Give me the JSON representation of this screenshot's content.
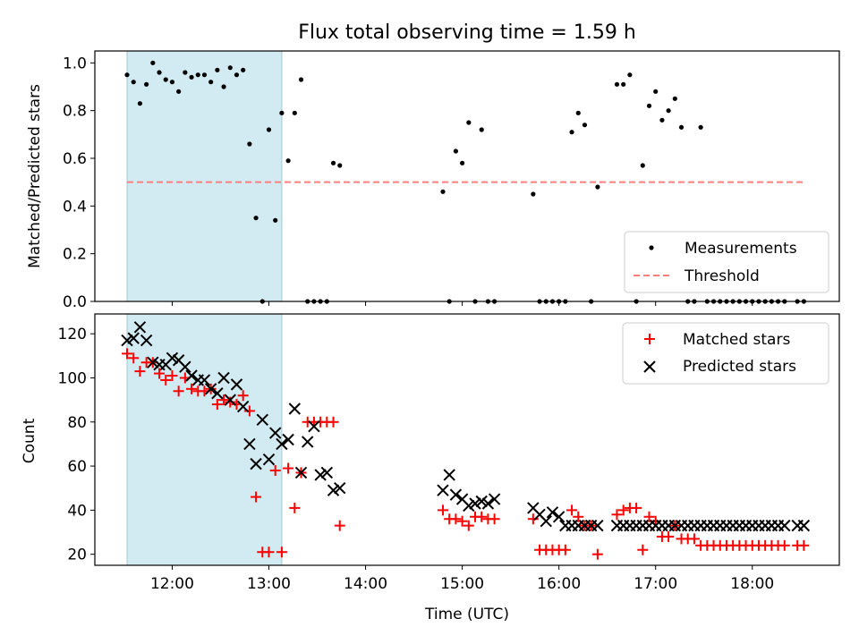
{
  "chart_data": [
    {
      "type": "scatter",
      "title": "Flux total observing time = 1.59 h",
      "xlabel": "",
      "ylabel": "Matched/Predicted stars",
      "xlim": [
        "11:12",
        "18:54"
      ],
      "ylim": [
        0,
        1.05
      ],
      "yticks": [
        "0.0",
        "0.2",
        "0.4",
        "0.6",
        "0.8",
        "1.0"
      ],
      "xticks": [
        "12:00",
        "13:00",
        "14:00",
        "15:00",
        "16:00",
        "17:00",
        "18:00"
      ],
      "shaded_region": {
        "from": "11:32",
        "to": "13:08",
        "color": "#add8e6"
      },
      "threshold": {
        "name": "Threshold",
        "value": 0.5,
        "from": "11:32",
        "to": "18:32",
        "color": "#ff7f7f"
      },
      "legend_position": "lower-right",
      "series": [
        {
          "name": "Measurements",
          "color": "#000000",
          "x": [
            "11:32",
            "11:36",
            "11:40",
            "11:44",
            "11:48",
            "11:52",
            "11:56",
            "12:00",
            "12:04",
            "12:08",
            "12:12",
            "12:16",
            "12:20",
            "12:24",
            "12:28",
            "12:32",
            "12:36",
            "12:40",
            "12:44",
            "12:48",
            "12:52",
            "12:56",
            "13:00",
            "13:04",
            "13:08",
            "13:12",
            "13:16",
            "13:20",
            "13:24",
            "13:28",
            "13:32",
            "13:36",
            "13:40",
            "13:44",
            "14:48",
            "14:52",
            "14:56",
            "15:00",
            "15:04",
            "15:08",
            "15:12",
            "15:16",
            "15:20",
            "15:44",
            "15:48",
            "15:52",
            "15:56",
            "16:00",
            "16:04",
            "16:08",
            "16:12",
            "16:16",
            "16:20",
            "16:24",
            "16:36",
            "16:40",
            "16:44",
            "16:48",
            "16:52",
            "16:56",
            "17:00",
            "17:04",
            "17:08",
            "17:12",
            "17:16",
            "17:20",
            "17:24",
            "17:28",
            "17:32",
            "17:36",
            "17:40",
            "17:44",
            "17:48",
            "17:52",
            "17:56",
            "18:00",
            "18:04",
            "18:08",
            "18:12",
            "18:16",
            "18:20",
            "18:28",
            "18:32"
          ],
          "y": [
            0.95,
            0.92,
            0.83,
            0.91,
            1.0,
            0.96,
            0.93,
            0.92,
            0.88,
            0.96,
            0.94,
            0.95,
            0.95,
            0.92,
            0.97,
            0.9,
            0.98,
            0.95,
            0.97,
            0.66,
            0.35,
            0.0,
            0.72,
            0.34,
            0.79,
            0.59,
            0.79,
            0.93,
            0.0,
            0.0,
            0.0,
            0.0,
            0.58,
            0.57,
            0.46,
            0.0,
            0.63,
            0.58,
            0.75,
            0.0,
            0.72,
            0.0,
            0.0,
            0.45,
            0.0,
            0.0,
            0.0,
            0.0,
            0.0,
            0.71,
            0.79,
            0.74,
            0.0,
            0.48,
            0.91,
            0.91,
            0.95,
            0.0,
            0.57,
            0.82,
            0.88,
            0.76,
            0.8,
            0.85,
            0.73,
            0.0,
            0.0,
            0.73,
            0.0,
            0.0,
            0.0,
            0.0,
            0.0,
            0.0,
            0.0,
            0.0,
            0.0,
            0.0,
            0.0,
            0.0,
            0.0,
            0.0,
            0.0
          ]
        }
      ]
    },
    {
      "type": "scatter",
      "title": "",
      "xlabel": "Time (UTC)",
      "ylabel": "Count",
      "xlim": [
        "11:12",
        "18:54"
      ],
      "ylim": [
        15,
        129
      ],
      "yticks": [
        "20",
        "40",
        "60",
        "80",
        "100",
        "120"
      ],
      "xticks": [
        "12:00",
        "13:00",
        "14:00",
        "15:00",
        "16:00",
        "17:00",
        "18:00"
      ],
      "shaded_region": {
        "from": "11:32",
        "to": "13:08",
        "color": "#add8e6"
      },
      "legend_position": "upper-right",
      "series": [
        {
          "name": "Matched stars",
          "color": "#ff0000",
          "marker": "plus",
          "x": [
            "11:32",
            "11:36",
            "11:40",
            "11:44",
            "11:48",
            "11:52",
            "11:56",
            "12:00",
            "12:04",
            "12:08",
            "12:12",
            "12:16",
            "12:20",
            "12:24",
            "12:28",
            "12:32",
            "12:36",
            "12:40",
            "12:44",
            "12:48",
            "12:52",
            "12:56",
            "13:00",
            "13:04",
            "13:08",
            "13:12",
            "13:16",
            "13:20",
            "13:24",
            "13:28",
            "13:32",
            "13:36",
            "13:40",
            "13:44",
            "14:48",
            "14:52",
            "14:56",
            "15:00",
            "15:04",
            "15:08",
            "15:12",
            "15:16",
            "15:20",
            "15:44",
            "15:48",
            "15:52",
            "15:56",
            "16:00",
            "16:04",
            "16:08",
            "16:12",
            "16:16",
            "16:20",
            "16:24",
            "16:36",
            "16:40",
            "16:44",
            "16:48",
            "16:52",
            "16:56",
            "17:00",
            "17:04",
            "17:08",
            "17:12",
            "17:16",
            "17:20",
            "17:24",
            "17:28",
            "17:32",
            "17:36",
            "17:40",
            "17:44",
            "17:48",
            "17:52",
            "17:56",
            "18:00",
            "18:04",
            "18:08",
            "18:12",
            "18:16",
            "18:20",
            "18:28",
            "18:32"
          ],
          "y": [
            111,
            109,
            103,
            107,
            107,
            102,
            99,
            101,
            94,
            100,
            95,
            94,
            94,
            95,
            88,
            90,
            89,
            88,
            92,
            85,
            46,
            21,
            21,
            58,
            21,
            59,
            41,
            57,
            80,
            80,
            80,
            80,
            80,
            33,
            40,
            36,
            36,
            35,
            33,
            37,
            37,
            36,
            36,
            36,
            22,
            22,
            22,
            22,
            22,
            40,
            37,
            33,
            33,
            20,
            38,
            40,
            41,
            41,
            22,
            37,
            35,
            28,
            28,
            33,
            27,
            27,
            27,
            24,
            24,
            24,
            24,
            24,
            24,
            24,
            24,
            24,
            24,
            24,
            24,
            24,
            24,
            24,
            24
          ]
        },
        {
          "name": "Predicted stars",
          "color": "#000000",
          "marker": "x",
          "x": [
            "11:32",
            "11:36",
            "11:40",
            "11:44",
            "11:48",
            "11:52",
            "11:56",
            "12:00",
            "12:04",
            "12:08",
            "12:12",
            "12:16",
            "12:20",
            "12:24",
            "12:28",
            "12:32",
            "12:36",
            "12:40",
            "12:44",
            "12:48",
            "12:52",
            "12:56",
            "13:00",
            "13:04",
            "13:08",
            "13:12",
            "13:16",
            "13:20",
            "13:24",
            "13:28",
            "13:32",
            "13:36",
            "13:40",
            "13:44",
            "14:48",
            "14:52",
            "14:56",
            "15:00",
            "15:04",
            "15:08",
            "15:12",
            "15:16",
            "15:20",
            "15:44",
            "15:48",
            "15:52",
            "15:56",
            "16:00",
            "16:04",
            "16:08",
            "16:12",
            "16:16",
            "16:20",
            "16:24",
            "16:36",
            "16:40",
            "16:44",
            "16:48",
            "16:52",
            "16:56",
            "17:00",
            "17:04",
            "17:08",
            "17:12",
            "17:16",
            "17:20",
            "17:24",
            "17:28",
            "17:32",
            "17:36",
            "17:40",
            "17:44",
            "17:48",
            "17:52",
            "17:56",
            "18:00",
            "18:04",
            "18:08",
            "18:12",
            "18:16",
            "18:20",
            "18:28",
            "18:32"
          ],
          "y": [
            117,
            118,
            123,
            117,
            107,
            106,
            106,
            109,
            108,
            105,
            101,
            99,
            99,
            95,
            93,
            100,
            90,
            97,
            87,
            70,
            61,
            81,
            63,
            75,
            70,
            72,
            86,
            57,
            71,
            78,
            56,
            57,
            49,
            50,
            49,
            56,
            47,
            45,
            42,
            43,
            44,
            43,
            45,
            41,
            38,
            35,
            39,
            37,
            33,
            33,
            33,
            33,
            33,
            33,
            33,
            33,
            33,
            33,
            33,
            33,
            33,
            33,
            33,
            33,
            33,
            33,
            33,
            33,
            33,
            33,
            33,
            33,
            33,
            33,
            33,
            33,
            33,
            33,
            33,
            33,
            33,
            33,
            33
          ]
        }
      ]
    }
  ]
}
